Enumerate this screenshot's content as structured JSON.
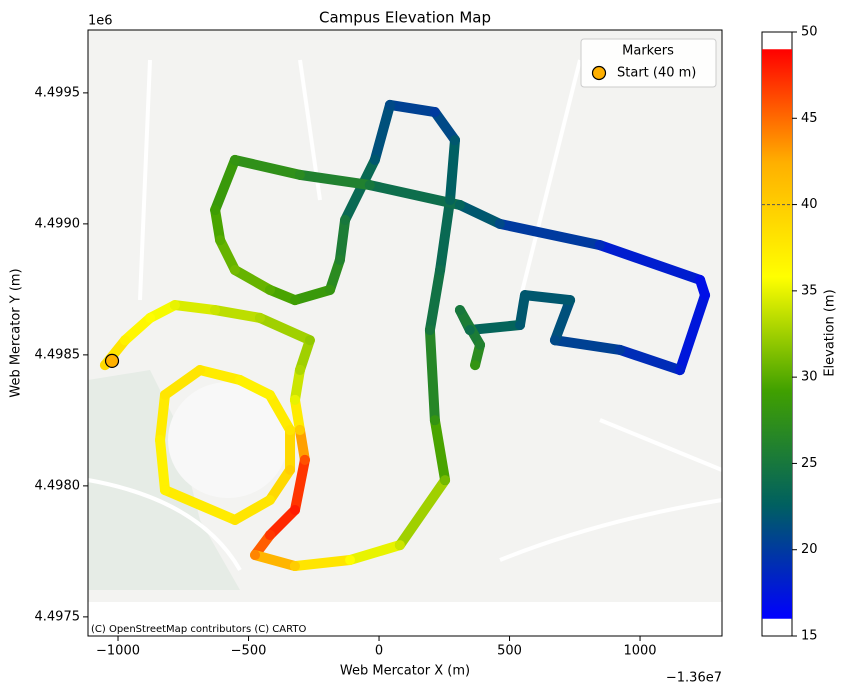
{
  "chart_data": {
    "type": "line",
    "title": "Campus Elevation Map",
    "x_label": "Web Mercator X (m)",
    "y_label": "Web Mercator Y (m)",
    "x_offset_label": "−1.36e7",
    "y_offset_label": "1e6",
    "attribution": "(C) OpenStreetMap contributors (C) CARTO",
    "xlim": [
      -1115,
      1314
    ],
    "ylim": [
      4497427,
      4499740
    ],
    "xticks": [
      {
        "value": -1000,
        "label": "−1000"
      },
      {
        "value": -500,
        "label": "−500"
      },
      0,
      500,
      1000
    ],
    "yticks": [
      {
        "value": 4497500,
        "label": "4.4975"
      },
      {
        "value": 4498000,
        "label": "4.4980"
      },
      {
        "value": 4498500,
        "label": "4.4985"
      },
      {
        "value": 4499000,
        "label": "4.4990"
      },
      {
        "value": 4499500,
        "label": "4.4995"
      }
    ],
    "track": {
      "x": [
        -1050,
        -973,
        -877,
        -782,
        -628,
        -456,
        -265,
        -303,
        -322,
        -303,
        -284,
        -322,
        -418,
        -475,
        -322,
        -111,
        80,
        253,
        214,
        195,
        234,
        272,
        291,
        214,
        42,
        -16,
        -130,
        -150,
        -188,
        -322,
        -418,
        -552,
        -609,
        -628,
        -552,
        -303,
        -35,
        310,
        463,
        846,
        1230,
        1249,
        1153,
        923,
        674,
        732,
        559,
        540,
        348,
        310,
        387,
        368,
        null,
        -341,
        -418,
        -533,
        -686,
        -820,
        -839,
        -820,
        -552,
        -418,
        -341,
        -341
      ],
      "y": [
        4498461,
        4498556,
        4498641,
        4498690,
        4498671,
        4498641,
        4498556,
        4498442,
        4498328,
        4498213,
        4498099,
        4497908,
        4497812,
        4497736,
        4497694,
        4497717,
        4497774,
        4498022,
        4498251,
        4498595,
        4498824,
        4499091,
        4499320,
        4499427,
        4499454,
        4499244,
        4499015,
        4498862,
        4498748,
        4498709,
        4498748,
        4498824,
        4498938,
        4499053,
        4499244,
        4499187,
        4499148,
        4499072,
        4499000,
        4498919,
        4498786,
        4498728,
        4498442,
        4498519,
        4498556,
        4498709,
        4498728,
        4498614,
        4498595,
        4498671,
        4498538,
        4498461,
        null,
        4498213,
        4498347,
        4498404,
        4498442,
        4498347,
        4498175,
        4497984,
        4497870,
        4497946,
        4498061,
        4498213
      ],
      "elevation": [
        39,
        37,
        36,
        35,
        34,
        33,
        32,
        33,
        35,
        40,
        46,
        48,
        47,
        44,
        40,
        36,
        34,
        31,
        28,
        25,
        24,
        23,
        22,
        20,
        21,
        22,
        25,
        26,
        28,
        29,
        30,
        31,
        30,
        29,
        28,
        27,
        25,
        23,
        21,
        19,
        17,
        17,
        18,
        20,
        21,
        22,
        22,
        22,
        24,
        25,
        26,
        28,
        null,
        38,
        37,
        37,
        38,
        38,
        37,
        37,
        38,
        38,
        40,
        38
      ]
    },
    "start": {
      "x": -1023,
      "y": 4498477,
      "elevation": 40,
      "label": "Start (40 m)",
      "color": "#ffb000"
    },
    "legend_title": "Markers",
    "legend_position": "upper right",
    "colorbar": {
      "label": "Elevation (m)",
      "clim": [
        15,
        50
      ],
      "ticks": [
        15,
        20,
        25,
        30,
        35,
        40,
        45,
        50
      ],
      "vmin": 16,
      "vmax": 49,
      "colormap": [
        "#0000ff",
        "#006060",
        "#40a000",
        "#ffff00",
        "#ffb000",
        "#ff0000"
      ]
    }
  }
}
